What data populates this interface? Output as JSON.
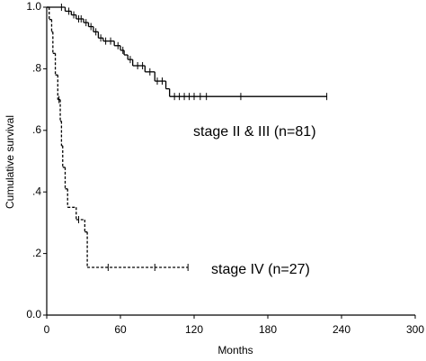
{
  "chart_data": {
    "type": "km",
    "x_label": "Months",
    "y_label": "Cumulative survival",
    "xlim": [
      0,
      300
    ],
    "ylim": [
      0,
      1
    ],
    "xticks": [
      0,
      60,
      120,
      180,
      240,
      300
    ],
    "yticks": [
      {
        "value": 0,
        "label": "0.0"
      },
      {
        "value": 0.2,
        "label": ".2"
      },
      {
        "value": 0.4,
        "label": ".4"
      },
      {
        "value": 0.6,
        "label": ".6"
      },
      {
        "value": 0.8,
        "label": ".8"
      },
      {
        "value": 1.0,
        "label": "1.0"
      }
    ],
    "series": [
      {
        "name": "stage II & III (n=81)",
        "color": "#000000",
        "dash": false,
        "x": [
          0,
          15,
          20,
          24,
          30,
          34,
          38,
          42,
          46,
          55,
          60,
          63,
          66,
          70,
          80,
          88,
          97,
          100,
          228
        ],
        "values": [
          1.0,
          0.987,
          0.975,
          0.962,
          0.95,
          0.937,
          0.92,
          0.9,
          0.89,
          0.875,
          0.86,
          0.845,
          0.83,
          0.81,
          0.79,
          0.76,
          0.735,
          0.71,
          0.71
        ],
        "censor_x": [
          12,
          18,
          22,
          26,
          28,
          32,
          36,
          40,
          44,
          48,
          52,
          58,
          62,
          68,
          74,
          78,
          84,
          90,
          94,
          104,
          108,
          112,
          116,
          120,
          125,
          130,
          158,
          228
        ],
        "censor_values": [
          1.0,
          0.987,
          0.975,
          0.962,
          0.962,
          0.95,
          0.937,
          0.92,
          0.9,
          0.89,
          0.89,
          0.875,
          0.86,
          0.83,
          0.81,
          0.81,
          0.79,
          0.76,
          0.76,
          0.71,
          0.71,
          0.71,
          0.71,
          0.71,
          0.71,
          0.71,
          0.71,
          0.71
        ]
      },
      {
        "name": "stage IV (n=27)",
        "color": "#000000",
        "dash": true,
        "x": [
          0,
          2,
          4,
          5,
          7,
          9,
          11,
          12,
          13,
          15,
          17,
          24,
          31,
          33,
          115
        ],
        "values": [
          1.0,
          0.96,
          0.92,
          0.85,
          0.78,
          0.7,
          0.63,
          0.55,
          0.48,
          0.41,
          0.35,
          0.31,
          0.27,
          0.155,
          0.155
        ],
        "censor_x": [
          10,
          26,
          50,
          88,
          115
        ],
        "censor_values": [
          0.7,
          0.31,
          0.155,
          0.155,
          0.155
        ]
      }
    ]
  }
}
